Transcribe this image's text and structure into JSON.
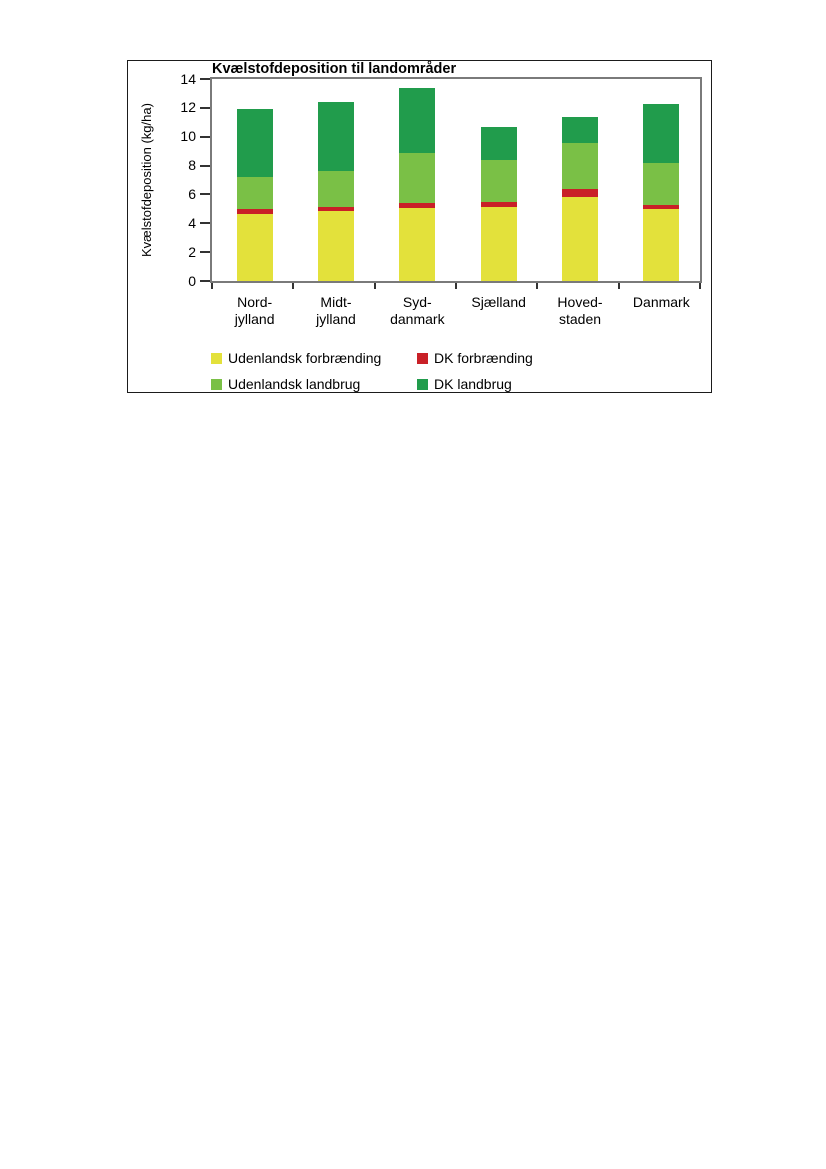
{
  "chart_data": {
    "type": "bar",
    "stacked": true,
    "title": "Kvælstofdeposition til landområder",
    "ylabel": "Kvælstofdeposition (kg/ha)",
    "xlabel": "",
    "ylim": [
      0,
      14
    ],
    "ytick_step": 2,
    "grid": false,
    "legend_position": "bottom",
    "categories": [
      "Nord-\njylland",
      "Midt-\njylland",
      "Syd-\ndanmark",
      "Sjælland",
      "Hoved-\nstaden",
      "Danmark"
    ],
    "series": [
      {
        "name": "Udenlandsk forbrænding",
        "color": "#e3e13b",
        "values": [
          4.65,
          4.85,
          5.05,
          5.1,
          5.8,
          5.0
        ]
      },
      {
        "name": "DK forbrænding",
        "color": "#c92027",
        "values": [
          0.35,
          0.3,
          0.35,
          0.4,
          0.55,
          0.3
        ]
      },
      {
        "name": "Udenlandsk landbrug",
        "color": "#7ac046",
        "values": [
          2.2,
          2.45,
          3.45,
          2.9,
          3.2,
          2.85
        ]
      },
      {
        "name": "DK landbrug",
        "color": "#219c4c",
        "values": [
          4.7,
          4.8,
          4.5,
          2.3,
          1.85,
          4.1
        ]
      }
    ]
  }
}
